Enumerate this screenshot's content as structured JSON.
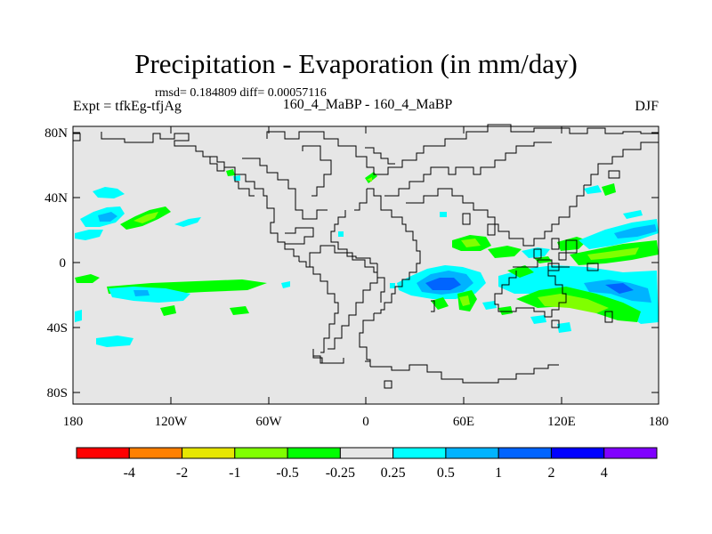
{
  "title": "Precipitation - Evaporation (in mm/day)",
  "stats": "rmsd= 0.184809 diff= 0.00057116",
  "experiment_left": "Expt = tfkEg-tfjAg",
  "experiment_center": "160_4_MaBP - 160_4_MaBP",
  "season": "DJF",
  "lat_ticks": [
    "80N",
    "40N",
    "0",
    "40S",
    "80S"
  ],
  "lon_ticks": [
    "180",
    "120W",
    "60W",
    "0",
    "60E",
    "120E",
    "180"
  ],
  "colorbar": {
    "colors": [
      "#ff0000",
      "#ff8000",
      "#e6e600",
      "#80ff00",
      "#00ff00",
      "#e6e6e6",
      "#00ffff",
      "#00b3ff",
      "#0064ff",
      "#0000ff",
      "#8000ff"
    ],
    "labels": [
      "-4",
      "-2",
      "-1",
      "-0.5",
      "-0.25",
      "0.25",
      "0.5",
      "1",
      "2",
      "4"
    ]
  },
  "colors": {
    "background_field": "#e6e6e6",
    "coast": "#000000"
  }
}
